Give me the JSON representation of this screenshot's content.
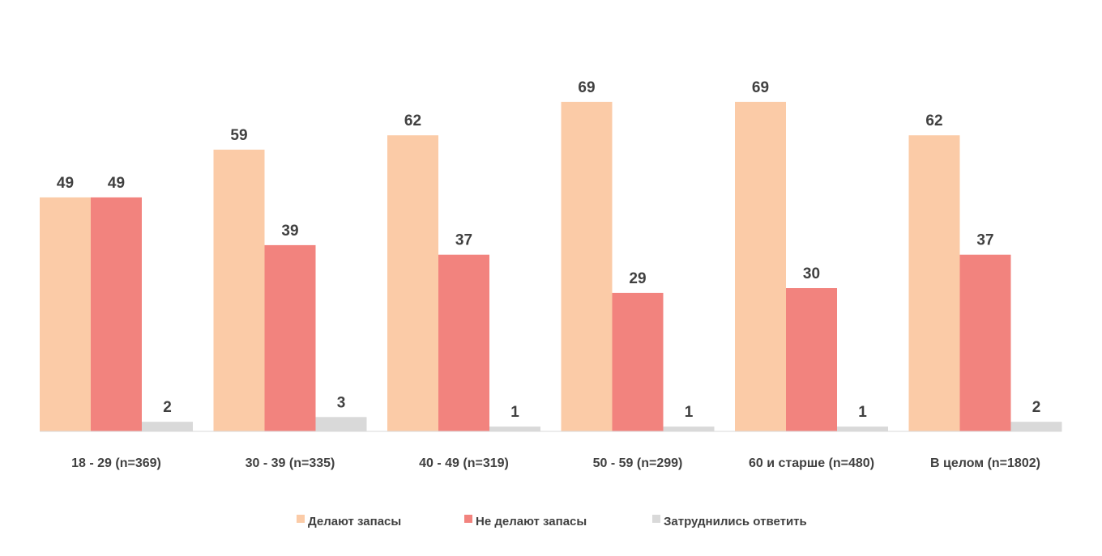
{
  "chart_data": {
    "type": "bar",
    "categories": [
      "18 - 29 (n=369)",
      "30 - 39 (n=335)",
      "40 - 49 (n=319)",
      "50 - 59 (n=299)",
      "60 и старше (n=480)",
      "В целом (n=1802)"
    ],
    "series": [
      {
        "name": "Делают запасы",
        "color": "#FBCBA7",
        "values": [
          49,
          59,
          62,
          69,
          69,
          62
        ]
      },
      {
        "name": "Не делают запасы",
        "color": "#F2837E",
        "values": [
          49,
          39,
          37,
          29,
          30,
          37
        ]
      },
      {
        "name": "Затруднились ответить",
        "color": "#D9D9D9",
        "values": [
          2,
          3,
          1,
          1,
          1,
          2
        ]
      }
    ],
    "ylim": [
      0,
      71
    ],
    "grid": false,
    "legend_position": "bottom"
  }
}
